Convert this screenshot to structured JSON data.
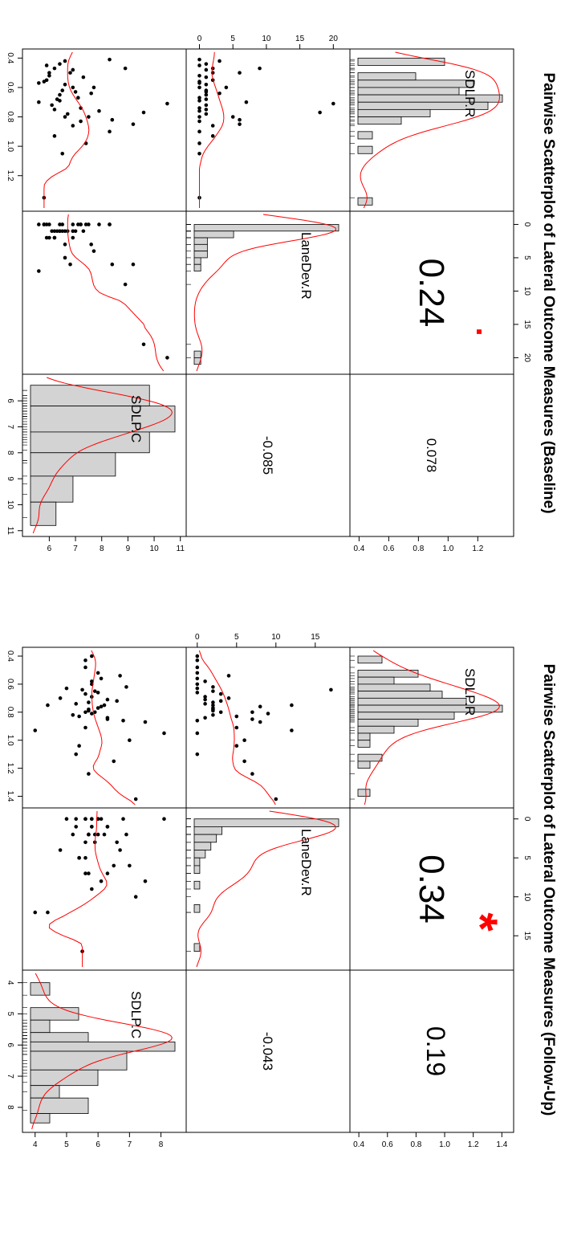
{
  "chart_data": [
    {
      "type": "pairs-matrix",
      "title": "Pairwise Scatterplot of Lateral Outcome Measures (Baseline)",
      "variables": [
        "SDLP.R",
        "LaneDev.R",
        "SDLP.C"
      ],
      "correlations": {
        "SDLP.R_LaneDev.R": "0.24",
        "SDLP.R_SDLP.C": "0.078",
        "LaneDev.R_SDLP.C": "-0.085"
      },
      "significance": {
        "SDLP.R_LaneDev.R": "."
      },
      "axes": {
        "SDLP.R": {
          "range": [
            0.36,
            1.42
          ],
          "ticks": [
            "0.4",
            "0.6",
            "0.8",
            "1.0",
            "1.2"
          ]
        },
        "LaneDev.R": {
          "range": [
            -1.5,
            22
          ],
          "ticks": [
            "0",
            "5",
            "10",
            "15",
            "20"
          ]
        },
        "SDLP.C": {
          "range": [
            5.1,
            11.1
          ],
          "ticks": [
            "6",
            "7",
            "8",
            "9",
            "10",
            "11"
          ]
        }
      },
      "histograms": {
        "SDLP.R": {
          "breaks": [
            0.4,
            0.45,
            0.5,
            0.55,
            0.6,
            0.65,
            0.7,
            0.75,
            0.8,
            0.85,
            0.9,
            0.95,
            1.0,
            1.05,
            1.1,
            1.15,
            1.2,
            1.25,
            1.3,
            1.35,
            1.4
          ],
          "counts": [
            6,
            0,
            4,
            8,
            7,
            10,
            9,
            5,
            3,
            0,
            1,
            0,
            1,
            0,
            0,
            0,
            0,
            0,
            0,
            1
          ]
        },
        "LaneDev.R": {
          "breaks": [
            0,
            1,
            2,
            3,
            4,
            5,
            6,
            7,
            8,
            9,
            10,
            11,
            12,
            13,
            14,
            15,
            16,
            17,
            18,
            19,
            20,
            21
          ],
          "counts": [
            22,
            6,
            2,
            2,
            2,
            1,
            1,
            0,
            0,
            0,
            0,
            0,
            0,
            0,
            0,
            0,
            0,
            0,
            0,
            1,
            1
          ]
        },
        "SDLP.C": {
          "breaks": [
            5.4,
            6.2,
            7.2,
            8.0,
            8.9,
            9.9,
            10.8
          ],
          "counts": [
            14,
            17,
            14,
            10,
            5,
            3
          ]
        }
      },
      "points": {
        "SDLP.R": [
          0.71,
          0.77,
          0.47,
          0.5,
          0.7,
          0.85,
          0.82,
          0.8,
          0.6,
          0.64,
          0.42,
          0.47,
          0.5,
          0.55,
          0.58,
          0.62,
          0.65,
          0.68,
          0.72,
          0.75,
          0.78,
          0.45,
          0.52,
          0.57,
          0.6,
          0.67,
          0.74,
          0.8,
          0.9,
          0.98,
          1.05,
          1.35,
          0.44,
          0.48,
          0.53,
          0.63,
          0.69,
          0.76,
          0.83,
          0.86,
          0.93,
          0.41,
          0.56
        ],
        "LaneDev.R": [
          20,
          18,
          9,
          6,
          7,
          6,
          6,
          5,
          4,
          3,
          3,
          2,
          2,
          2,
          1,
          1,
          1,
          1,
          1,
          1,
          1,
          0,
          0,
          0,
          0,
          0,
          0,
          0,
          0,
          0,
          0,
          0,
          1,
          1,
          1,
          1,
          0,
          0,
          0,
          2,
          2,
          0,
          0
        ],
        "SDLP.C": [
          10.5,
          9.6,
          8.9,
          6.8,
          5.6,
          9.2,
          8.4,
          6.6,
          7.7,
          7.6,
          6.6,
          6.2,
          6.0,
          5.9,
          6.6,
          6.5,
          6.4,
          6.3,
          6.1,
          6.2,
          6.7,
          5.9,
          6.0,
          5.6,
          6.9,
          7.1,
          7.2,
          7.5,
          8.3,
          7.4,
          6.5,
          5.8,
          6.4,
          6.9,
          7.3,
          7.0,
          6.4,
          7.9,
          7.2,
          6.9,
          6.2,
          8.3,
          5.8
        ]
      }
    },
    {
      "type": "pairs-matrix",
      "title": "Pairwise Scatterplot of Lateral Outcome Measures (Follow-Up)",
      "variables": [
        "SDLP.R",
        "LaneDev.R",
        "SDLP.C"
      ],
      "correlations": {
        "SDLP.R_LaneDev.R": "0.34",
        "SDLP.R_SDLP.C": "0.19",
        "LaneDev.R_SDLP.C": "-0.043"
      },
      "significance": {
        "SDLP.R_LaneDev.R": "*"
      },
      "axes": {
        "SDLP.R": {
          "range": [
            0.36,
            1.46
          ],
          "ticks": [
            "0.4",
            "0.6",
            "0.8",
            "1.0",
            "1.2",
            "1.4"
          ]
        },
        "LaneDev.R": {
          "range": [
            -1,
            19
          ],
          "ticks": [
            "0",
            "5",
            "10",
            "15"
          ]
        },
        "SDLP.C": {
          "range": [
            3.7,
            8.7
          ],
          "ticks": [
            "4",
            "5",
            "6",
            "7",
            "8"
          ]
        }
      },
      "histograms": {
        "SDLP.R": {
          "breaks": [
            0.4,
            0.45,
            0.5,
            0.55,
            0.6,
            0.65,
            0.7,
            0.75,
            0.8,
            0.85,
            0.9,
            0.95,
            1.0,
            1.05,
            1.1,
            1.15,
            1.2,
            1.25,
            1.3,
            1.35,
            1.4
          ],
          "counts": [
            2,
            0,
            5,
            3,
            6,
            7,
            9,
            12,
            8,
            5,
            3,
            1,
            1,
            0,
            2,
            1,
            0,
            0,
            0,
            1
          ]
        },
        "LaneDev.R": {
          "breaks": [
            0,
            1,
            2,
            3,
            4,
            5,
            6,
            7,
            8,
            9,
            10,
            11,
            12,
            13,
            14,
            15,
            16,
            17,
            18
          ],
          "counts": [
            26,
            5,
            4,
            3,
            2,
            1,
            1,
            0,
            1,
            0,
            0,
            1,
            0,
            0,
            0,
            0,
            1,
            0
          ]
        },
        "SDLP.C": {
          "breaks": [
            4.0,
            4.4,
            4.8,
            5.2,
            5.6,
            5.9,
            6.2,
            6.8,
            7.3,
            7.7,
            8.2,
            8.5
          ],
          "counts": [
            2,
            0,
            5,
            2,
            6,
            15,
            10,
            7,
            3,
            6,
            2
          ]
        }
      },
      "points": {
        "SDLP.R": [
          0.64,
          0.75,
          0.81,
          0.93,
          0.87,
          0.76,
          0.8,
          0.83,
          0.85,
          0.91,
          1.0,
          1.04,
          1.15,
          1.24,
          1.42,
          0.54,
          0.58,
          0.62,
          0.65,
          0.67,
          0.7,
          0.72,
          0.74,
          0.77,
          0.79,
          0.82,
          0.84,
          0.4,
          0.43,
          0.48,
          0.52,
          0.56,
          0.6,
          0.63,
          0.66,
          0.69,
          0.71,
          0.73,
          0.75,
          0.78,
          0.8,
          0.86,
          0.95,
          1.1
        ],
        "LaneDev.R": [
          17,
          12,
          9,
          12,
          8,
          8,
          7,
          5,
          7,
          5,
          6,
          5,
          6,
          7,
          10,
          4,
          1,
          2,
          2,
          3,
          4,
          3,
          1,
          2,
          2,
          2,
          1,
          0,
          0,
          0,
          0,
          0,
          0,
          0,
          0,
          1,
          1,
          2,
          2,
          2,
          3,
          0,
          0,
          0
        ],
        "SDLP.C": [
          5.5,
          4.4,
          5.8,
          4.0,
          7.5,
          6.1,
          5.6,
          5.4,
          6.3,
          5.6,
          7.0,
          5.4,
          6.5,
          5.7,
          7.2,
          6.7,
          5.8,
          6.9,
          5.9,
          5.6,
          4.8,
          6.6,
          5.3,
          6.0,
          5.7,
          5.2,
          6.3,
          5.8,
          5.6,
          5.6,
          6.0,
          6.1,
          5.8,
          5.0,
          6.0,
          5.8,
          6.3,
          5.7,
          6.2,
          5.7,
          5.9,
          6.8,
          8.1,
          5.3
        ]
      }
    }
  ]
}
